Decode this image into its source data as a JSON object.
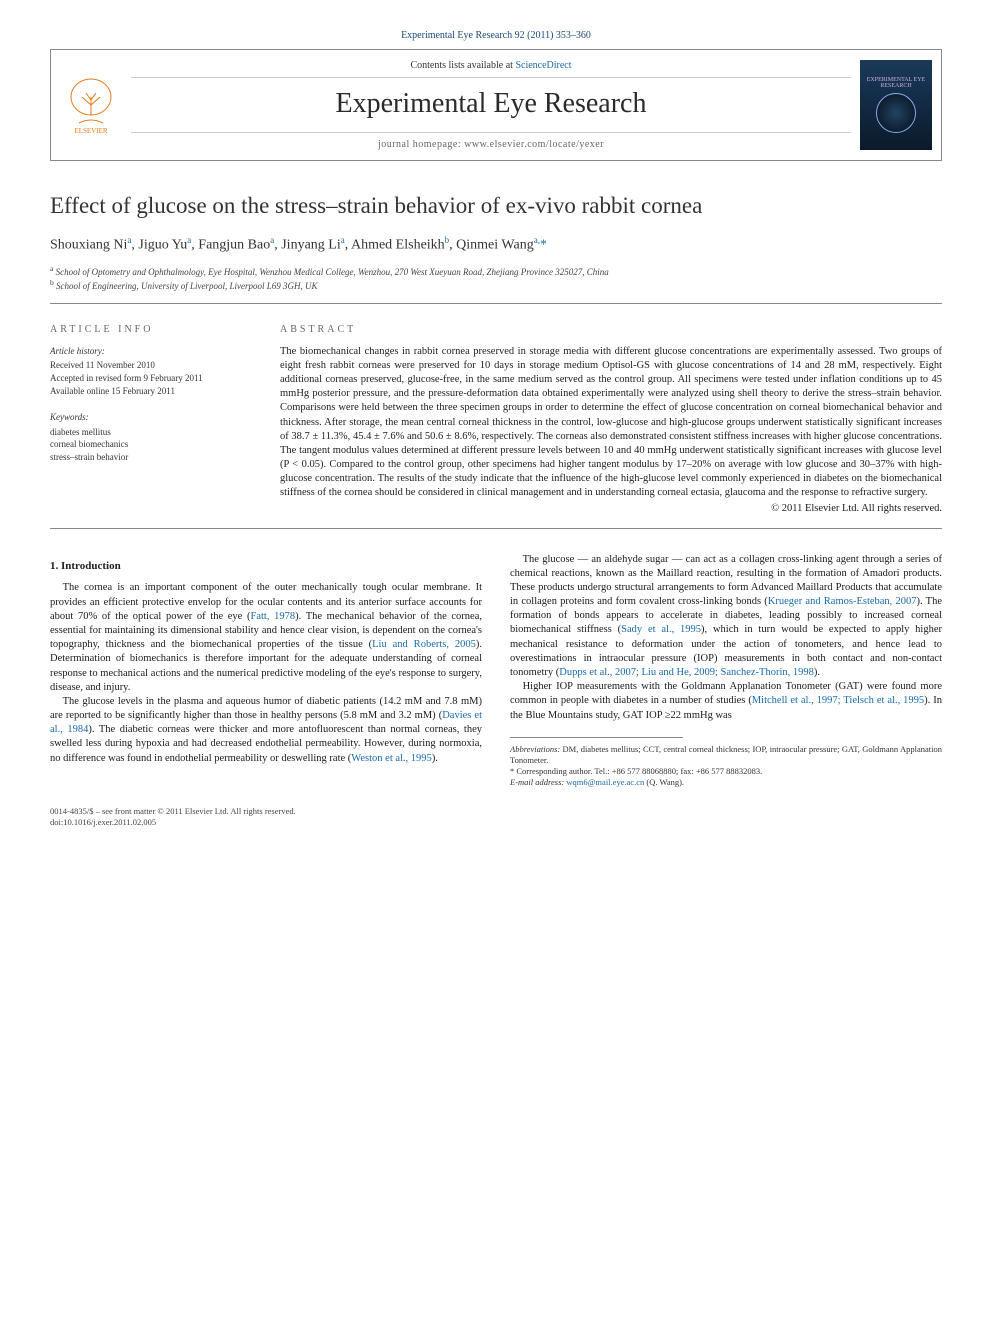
{
  "journal_ref": "Experimental Eye Research 92 (2011) 353–360",
  "header": {
    "contents_prefix": "Contents lists available at ",
    "contents_link": "ScienceDirect",
    "journal_name": "Experimental Eye Research",
    "homepage_prefix": "journal homepage: ",
    "homepage_url": "www.elsevier.com/locate/yexer",
    "publisher": "ELSEVIER",
    "cover_text": "EXPERIMENTAL EYE RESEARCH"
  },
  "title": "Effect of glucose on the stress–strain behavior of ex-vivo rabbit cornea",
  "authors_html": "Shouxiang Ni<sup>a</sup>, Jiguo Yu<sup>a</sup>, Fangjun Bao<sup>a</sup>, Jinyang Li<sup>a</sup>, Ahmed Elsheikh<sup>b</sup>, Qinmei Wang<sup>a,</sup><span class='star'>*</span>",
  "affiliations": {
    "a": "School of Optometry and Ophthalmology, Eye Hospital, Wenzhou Medical College, Wenzhou, 270 West Xueyuan Road, Zhejiang Province 325027, China",
    "b": "School of Engineering, University of Liverpool, Liverpool L69 3GH, UK"
  },
  "article_info": {
    "heading": "ARTICLE INFO",
    "history_heading": "Article history:",
    "received": "Received 11 November 2010",
    "accepted": "Accepted in revised form 9 February 2011",
    "online": "Available online 15 February 2011",
    "keywords_heading": "Keywords:",
    "keywords": [
      "diabetes mellitus",
      "corneal biomechanics",
      "stress–strain behavior"
    ]
  },
  "abstract": {
    "heading": "ABSTRACT",
    "text": "The biomechanical changes in rabbit cornea preserved in storage media with different glucose concentrations are experimentally assessed. Two groups of eight fresh rabbit corneas were preserved for 10 days in storage medium Optisol-GS with glucose concentrations of 14 and 28 mM, respectively. Eight additional corneas preserved, glucose-free, in the same medium served as the control group. All specimens were tested under inflation conditions up to 45 mmHg posterior pressure, and the pressure-deformation data obtained experimentally were analyzed using shell theory to derive the stress–strain behavior. Comparisons were held between the three specimen groups in order to determine the effect of glucose concentration on corneal biomechanical behavior and thickness. After storage, the mean central corneal thickness in the control, low-glucose and high-glucose groups underwent statistically significant increases of 38.7 ± 11.3%, 45.4 ± 7.6% and 50.6 ± 8.6%, respectively. The corneas also demonstrated consistent stiffness increases with higher glucose concentrations. The tangent modulus values determined at different pressure levels between 10 and 40 mmHg underwent statistically significant increases with glucose level (P < 0.05). Compared to the control group, other specimens had higher tangent modulus by 17–20% on average with low glucose and 30–37% with high-glucose concentration. The results of the study indicate that the influence of the high-glucose level commonly experienced in diabetes on the biomechanical stiffness of the cornea should be considered in clinical management and in understanding corneal ectasia, glaucoma and the response to refractive surgery.",
    "copyright": "© 2011 Elsevier Ltd. All rights reserved."
  },
  "body": {
    "section1_heading": "1. Introduction",
    "p1": "The cornea is an important component of the outer mechanically tough ocular membrane. It provides an efficient protective envelop for the ocular contents and its anterior surface accounts for about 70% of the optical power of the eye (",
    "p1_cite1": "Fatt, 1978",
    "p1_cont": "). The mechanical behavior of the cornea, essential for maintaining its dimensional stability and hence clear vision, is dependent on the cornea's topography, thickness and the biomechanical properties of the tissue (",
    "p1_cite2": "Liu and Roberts, 2005",
    "p1_end": "). Determination of biomechanics is therefore important for the adequate understanding of corneal response to mechanical actions and the numerical predictive modeling of the eye's response to surgery, disease, and injury.",
    "p2": "The glucose levels in the plasma and aqueous humor of diabetic patients (14.2 mM and 7.8 mM) are reported to be significantly higher than those in healthy persons (5.8 mM and 3.2 mM) (",
    "p2_cite1": "Davies et al., 1984",
    "p2_cont": "). The diabetic corneas were thicker and more antofluorescent than normal corneas, they swelled less during hypoxia and had decreased endothelial permeability. However, during normoxia, no difference was found in endothelial permeability or deswelling rate (",
    "p2_cite2": "Weston et al., 1995",
    "p2_end": ").",
    "p3": "The glucose — an aldehyde sugar — can act as a collagen cross-linking agent through a series of chemical reactions, known as the Maillard reaction, resulting in the formation of Amadori products. These products undergo structural arrangements to form Advanced Maillard Products that accumulate in collagen proteins and form covalent cross-linking bonds (",
    "p3_cite1": "Krueger and Ramos-Esteban, 2007",
    "p3_cont": "). The formation of bonds appears to accelerate in diabetes, leading possibly to increased corneal biomechanical stiffness (",
    "p3_cite2": "Sady et al., 1995",
    "p3_cont2": "), which in turn would be expected to apply higher mechanical resistance to deformation under the action of tonometers, and hence lead to overestimations in intraocular pressure (IOP) measurements in both contact and non-contact tonometry (",
    "p3_cite3": "Dupps et al., 2007; Liu and He, 2009; Sanchez-Thorin, 1998",
    "p3_end": ").",
    "p4": "Higher IOP measurements with the Goldmann Applanation Tonometer (GAT) were found more common in people with diabetes in a number of studies (",
    "p4_cite1": "Mitchell et al., 1997; Tielsch et al., 1995",
    "p4_cont": "). In the Blue Mountains study, GAT IOP ≥22 mmHg was"
  },
  "footnotes": {
    "abbrev_label": "Abbreviations:",
    "abbrev_text": " DM, diabetes mellitus; CCT, central corneal thickness; IOP, intraocular pressure; GAT, Goldmann Applanation Tonometer.",
    "corr_label": "* Corresponding author.",
    "corr_text": " Tel.: +86 577 88068880; fax: +86 577 88832083.",
    "email_label": "E-mail address:",
    "email": " wqm6@mail.eye.ac.cn",
    "email_suffix": " (Q. Wang)."
  },
  "footer": {
    "line1": "0014-4835/$ – see front matter © 2011 Elsevier Ltd. All rights reserved.",
    "line2": "doi:10.1016/j.exer.2011.02.005"
  },
  "colors": {
    "link": "#1a6aaa",
    "text": "#1a1a1a",
    "rule": "#888888"
  }
}
